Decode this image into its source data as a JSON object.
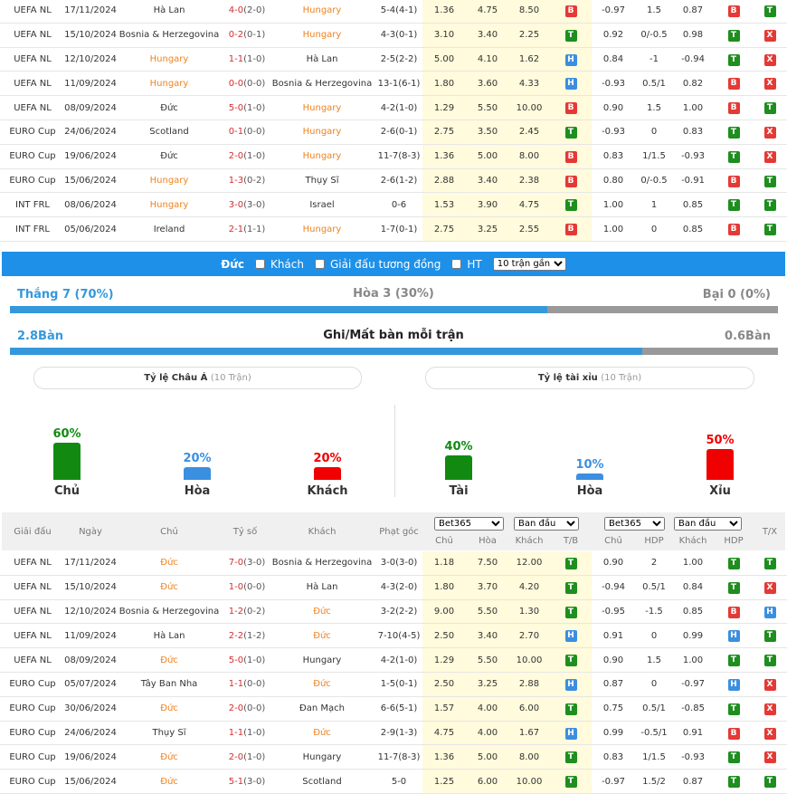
{
  "recent_table": {
    "highlight": "Hungary",
    "rows": [
      [
        "UEFA NL",
        "17/11/2024",
        "Hà Lan",
        "4-0",
        "(2-0)",
        "Hungary",
        "5-4(4-1)",
        "1.36",
        "4.75",
        "8.50",
        "B",
        "-0.97",
        "1.5",
        "0.87",
        "B",
        "T"
      ],
      [
        "UEFA NL",
        "15/10/2024",
        "Bosnia & Herzegovina",
        "0-2",
        "(0-1)",
        "Hungary",
        "4-3(0-1)",
        "3.10",
        "3.40",
        "2.25",
        "T",
        "0.92",
        "0/-0.5",
        "0.98",
        "T",
        "X"
      ],
      [
        "UEFA NL",
        "12/10/2024",
        "Hungary",
        "1-1",
        "(1-0)",
        "Hà Lan",
        "2-5(2-2)",
        "5.00",
        "4.10",
        "1.62",
        "H",
        "0.84",
        "-1",
        "-0.94",
        "T",
        "X"
      ],
      [
        "UEFA NL",
        "11/09/2024",
        "Hungary",
        "0-0",
        "(0-0)",
        "Bosnia & Herzegovina",
        "13-1(6-1)",
        "1.80",
        "3.60",
        "4.33",
        "H",
        "-0.93",
        "0.5/1",
        "0.82",
        "B",
        "X"
      ],
      [
        "UEFA NL",
        "08/09/2024",
        "Đức",
        "5-0",
        "(1-0)",
        "Hungary",
        "4-2(1-0)",
        "1.29",
        "5.50",
        "10.00",
        "B",
        "0.90",
        "1.5",
        "1.00",
        "B",
        "T"
      ],
      [
        "EURO Cup",
        "24/06/2024",
        "Scotland",
        "0-1",
        "(0-0)",
        "Hungary",
        "2-6(0-1)",
        "2.75",
        "3.50",
        "2.45",
        "T",
        "-0.93",
        "0",
        "0.83",
        "T",
        "X"
      ],
      [
        "EURO Cup",
        "19/06/2024",
        "Đức",
        "2-0",
        "(1-0)",
        "Hungary",
        "11-7(8-3)",
        "1.36",
        "5.00",
        "8.00",
        "B",
        "0.83",
        "1/1.5",
        "-0.93",
        "T",
        "X"
      ],
      [
        "EURO Cup",
        "15/06/2024",
        "Hungary",
        "1-3",
        "(0-2)",
        "Thụy Sĩ",
        "2-6(1-2)",
        "2.88",
        "3.40",
        "2.38",
        "B",
        "0.80",
        "0/-0.5",
        "-0.91",
        "B",
        "T"
      ],
      [
        "INT FRL",
        "08/06/2024",
        "Hungary",
        "3-0",
        "(3-0)",
        "Israel",
        "0-6",
        "1.53",
        "3.90",
        "4.75",
        "T",
        "1.00",
        "1",
        "0.85",
        "T",
        "T"
      ],
      [
        "INT FRL",
        "05/06/2024",
        "Ireland",
        "2-1",
        "(1-1)",
        "Hungary",
        "1-7(0-1)",
        "2.75",
        "3.25",
        "2.55",
        "B",
        "1.00",
        "0",
        "0.85",
        "B",
        "T"
      ]
    ]
  },
  "filter": {
    "team": "Đức",
    "options": [
      "Khách",
      "Giải đấu tương đồng",
      "HT"
    ],
    "select": "10 trận gần"
  },
  "summary": {
    "win_label": "Thắng 7 (70%)",
    "win_pct": 70,
    "draw_label": "Hòa 3 (30%)",
    "draw_pct": 30,
    "loss_label": "Bại 0 (0%)",
    "loss_pct": 0,
    "goals_for_label": "2.8Bàn",
    "goals_for": 2.8,
    "goals_title": "Ghi/Mất bàn mỗi trận",
    "goals_against_label": "0.6Bàn",
    "goals_against": 0.6
  },
  "handicap": {
    "title": "Tỷ lệ Châu Á",
    "note": "(10 Trận)",
    "bars": [
      {
        "name": "Chủ",
        "value": 60,
        "label": "60%",
        "color": "#128a12"
      },
      {
        "name": "Hòa",
        "value": 20,
        "label": "20%",
        "color": "#3b8fe0"
      },
      {
        "name": "Khách",
        "value": 20,
        "label": "20%",
        "color": "#f00000"
      }
    ]
  },
  "overunder": {
    "title": "Tỷ lệ tài xỉu",
    "note": "(10 Trận)",
    "bars": [
      {
        "name": "Tài",
        "value": 40,
        "label": "40%",
        "color": "#128a12"
      },
      {
        "name": "Hòa",
        "value": 10,
        "label": "10%",
        "color": "#3b8fe0"
      },
      {
        "name": "Xỉu",
        "value": 50,
        "label": "50%",
        "color": "#f00000"
      }
    ]
  },
  "h2h_table": {
    "highlight": "Đức",
    "headers": [
      "Giải đấu",
      "Ngày",
      "Chủ",
      "Tỷ số",
      "Khách",
      "Phạt góc"
    ],
    "selects": [
      "Bet365",
      "Ban đầu",
      "Bet365",
      "Ban đầu"
    ],
    "subheaders": [
      "Chủ",
      "Hòa",
      "Khách",
      "T/B",
      "Chủ",
      "HDP",
      "Khách",
      "HDP"
    ],
    "last_header": "T/X",
    "rows": [
      [
        "UEFA NL",
        "17/11/2024",
        "Đức",
        "7-0",
        "(3-0)",
        "Bosnia & Herzegovina",
        "3-0(3-0)",
        "1.18",
        "7.50",
        "12.00",
        "T",
        "0.90",
        "2",
        "1.00",
        "T",
        "T"
      ],
      [
        "UEFA NL",
        "15/10/2024",
        "Đức",
        "1-0",
        "(0-0)",
        "Hà Lan",
        "4-3(2-0)",
        "1.80",
        "3.70",
        "4.20",
        "T",
        "-0.94",
        "0.5/1",
        "0.84",
        "T",
        "X"
      ],
      [
        "UEFA NL",
        "12/10/2024",
        "Bosnia & Herzegovina",
        "1-2",
        "(0-2)",
        "Đức",
        "3-2(2-2)",
        "9.00",
        "5.50",
        "1.30",
        "T",
        "-0.95",
        "-1.5",
        "0.85",
        "B",
        "H"
      ],
      [
        "UEFA NL",
        "11/09/2024",
        "Hà Lan",
        "2-2",
        "(1-2)",
        "Đức",
        "7-10(4-5)",
        "2.50",
        "3.40",
        "2.70",
        "H",
        "0.91",
        "0",
        "0.99",
        "H",
        "T"
      ],
      [
        "UEFA NL",
        "08/09/2024",
        "Đức",
        "5-0",
        "(1-0)",
        "Hungary",
        "4-2(1-0)",
        "1.29",
        "5.50",
        "10.00",
        "T",
        "0.90",
        "1.5",
        "1.00",
        "T",
        "T"
      ],
      [
        "EURO Cup",
        "05/07/2024",
        "Tây Ban Nha",
        "1-1",
        "(0-0)",
        "Đức",
        "1-5(0-1)",
        "2.50",
        "3.25",
        "2.88",
        "H",
        "0.87",
        "0",
        "-0.97",
        "H",
        "X"
      ],
      [
        "EURO Cup",
        "30/06/2024",
        "Đức",
        "2-0",
        "(0-0)",
        "Đan Mạch",
        "6-6(5-1)",
        "1.57",
        "4.00",
        "6.00",
        "T",
        "0.75",
        "0.5/1",
        "-0.85",
        "T",
        "X"
      ],
      [
        "EURO Cup",
        "24/06/2024",
        "Thụy Sĩ",
        "1-1",
        "(1-0)",
        "Đức",
        "2-9(1-3)",
        "4.75",
        "4.00",
        "1.67",
        "H",
        "0.99",
        "-0.5/1",
        "0.91",
        "B",
        "X"
      ],
      [
        "EURO Cup",
        "19/06/2024",
        "Đức",
        "2-0",
        "(1-0)",
        "Hungary",
        "11-7(8-3)",
        "1.36",
        "5.00",
        "8.00",
        "T",
        "0.83",
        "1/1.5",
        "-0.93",
        "T",
        "X"
      ],
      [
        "EURO Cup",
        "15/06/2024",
        "Đức",
        "5-1",
        "(3-0)",
        "Scotland",
        "5-0",
        "1.25",
        "6.00",
        "10.00",
        "T",
        "-0.97",
        "1.5/2",
        "0.87",
        "T",
        "T"
      ]
    ]
  },
  "badge_colors": {
    "B": "#e53935",
    "T": "#1e8e1e",
    "H": "#3b8fe0",
    "X": "#e53935"
  }
}
